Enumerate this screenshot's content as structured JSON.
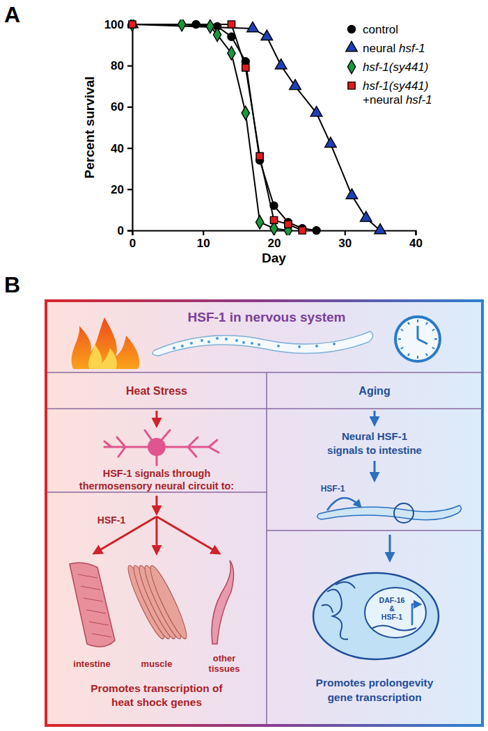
{
  "panel_labels": [
    "A",
    "B"
  ],
  "chart_data": {
    "type": "line",
    "x_label": "Day",
    "y_label": "Percent survival",
    "xlim": [
      0,
      40
    ],
    "xticks": [
      0,
      10,
      20,
      30,
      40
    ],
    "ylim": [
      0,
      100
    ],
    "yticks": [
      0,
      20,
      40,
      60,
      80,
      100
    ],
    "legend": "upper right",
    "series": [
      {
        "name": "control",
        "color": "#000000",
        "marker": "circle",
        "x": [
          0,
          9,
          12,
          14,
          16,
          18,
          20,
          22,
          24,
          26
        ],
        "values": [
          100,
          100,
          99,
          94,
          82,
          34,
          12,
          4,
          1,
          0
        ]
      },
      {
        "name": "neural hsf-1",
        "color": "#1f3fb4",
        "marker": "triangle",
        "x": [
          0,
          17,
          19,
          21,
          23,
          26,
          28,
          31,
          33,
          35
        ],
        "values": [
          100,
          98,
          94,
          80,
          70,
          57,
          42,
          17,
          6,
          0
        ]
      },
      {
        "name": "hsf-1(sy441)",
        "color": "#1a9641",
        "marker": "diamond",
        "x": [
          0,
          7,
          11,
          12,
          14,
          16,
          18,
          20,
          22
        ],
        "values": [
          100,
          100,
          99,
          95,
          86,
          57,
          4,
          1,
          0
        ]
      },
      {
        "name": "hsf-1(sy441) +neural hsf-1",
        "color": "#e41a1c",
        "marker": "square",
        "x": [
          0,
          14,
          16,
          18,
          20,
          22,
          24
        ],
        "values": [
          100,
          100,
          79,
          36,
          5,
          3,
          0
        ]
      }
    ]
  },
  "diagram": {
    "title": "HSF-1 in nervous system",
    "left": {
      "heading": "Heat Stress",
      "step": [
        "HSF-1 signals through",
        "thermosensory neural circuit to:"
      ],
      "factor": "HSF-1",
      "tissues": [
        [
          "intestine"
        ],
        [
          "muscle"
        ],
        [
          "other",
          "tissues"
        ]
      ],
      "outcome": [
        "Promotes transcription of",
        "heat shock genes"
      ]
    },
    "right": {
      "heading": "Aging",
      "step": [
        "Neural HSF-1",
        "signals to intestine"
      ],
      "factor": "HSF-1",
      "nucleus_label": [
        "DAF-16",
        "&",
        "HSF-1"
      ],
      "outcome": [
        "Promotes prolongevity",
        "gene transcription"
      ]
    }
  }
}
